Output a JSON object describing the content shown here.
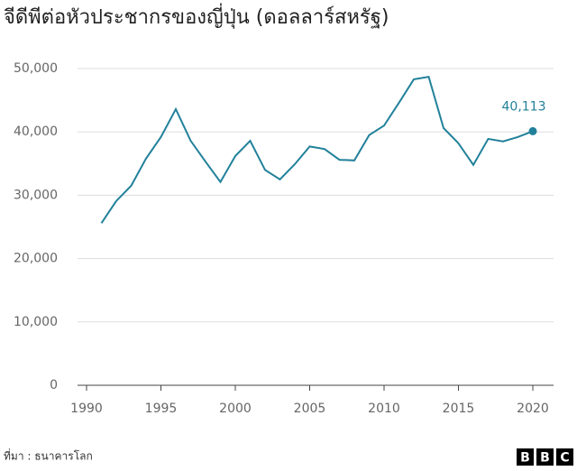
{
  "chart_data": {
    "type": "line",
    "title": "จีดีพีต่อหัวประชากรของญี่ปุ่น (ดอลลาร์สหรัฐ)",
    "source": "ที่มา : ธนาคารโลก",
    "logo": "BBC",
    "x": [
      1991,
      1992,
      1993,
      1994,
      1995,
      1996,
      1997,
      1998,
      1999,
      2000,
      2001,
      2002,
      2003,
      2004,
      2005,
      2006,
      2007,
      2008,
      2009,
      2010,
      2011,
      2012,
      2013,
      2014,
      2015,
      2016,
      2017,
      2018,
      2019,
      2020
    ],
    "series": [
      {
        "color": "#21819a",
        "values": [
          25600,
          29100,
          31500,
          35800,
          39200,
          43600,
          38600,
          35300,
          32100,
          36200,
          38600,
          34000,
          32500,
          34900,
          37700,
          37300,
          35600,
          35500,
          39500,
          41000,
          44600,
          48300,
          48700,
          40600,
          38200,
          34800,
          38900,
          38500,
          39200,
          40113
        ],
        "value_labels": [
          null,
          null,
          null,
          null,
          null,
          null,
          null,
          null,
          null,
          null,
          null,
          null,
          null,
          null,
          null,
          null,
          null,
          null,
          null,
          null,
          null,
          null,
          null,
          null,
          null,
          null,
          null,
          null,
          null,
          "40,113"
        ]
      }
    ],
    "xlim": [
      1990,
      2020
    ],
    "xticks": [
      1990,
      1995,
      2000,
      2005,
      2010,
      2015,
      2020
    ],
    "ylim": [
      0,
      50000
    ],
    "yticks": [
      0,
      {
        "value": 10000,
        "label": "10,000"
      },
      {
        "value": 20000,
        "label": "20,000"
      },
      {
        "value": 30000,
        "label": "30,000"
      },
      {
        "value": 40000,
        "label": "40,000"
      },
      {
        "value": 50000,
        "label": "50,000"
      }
    ],
    "grid": true
  }
}
